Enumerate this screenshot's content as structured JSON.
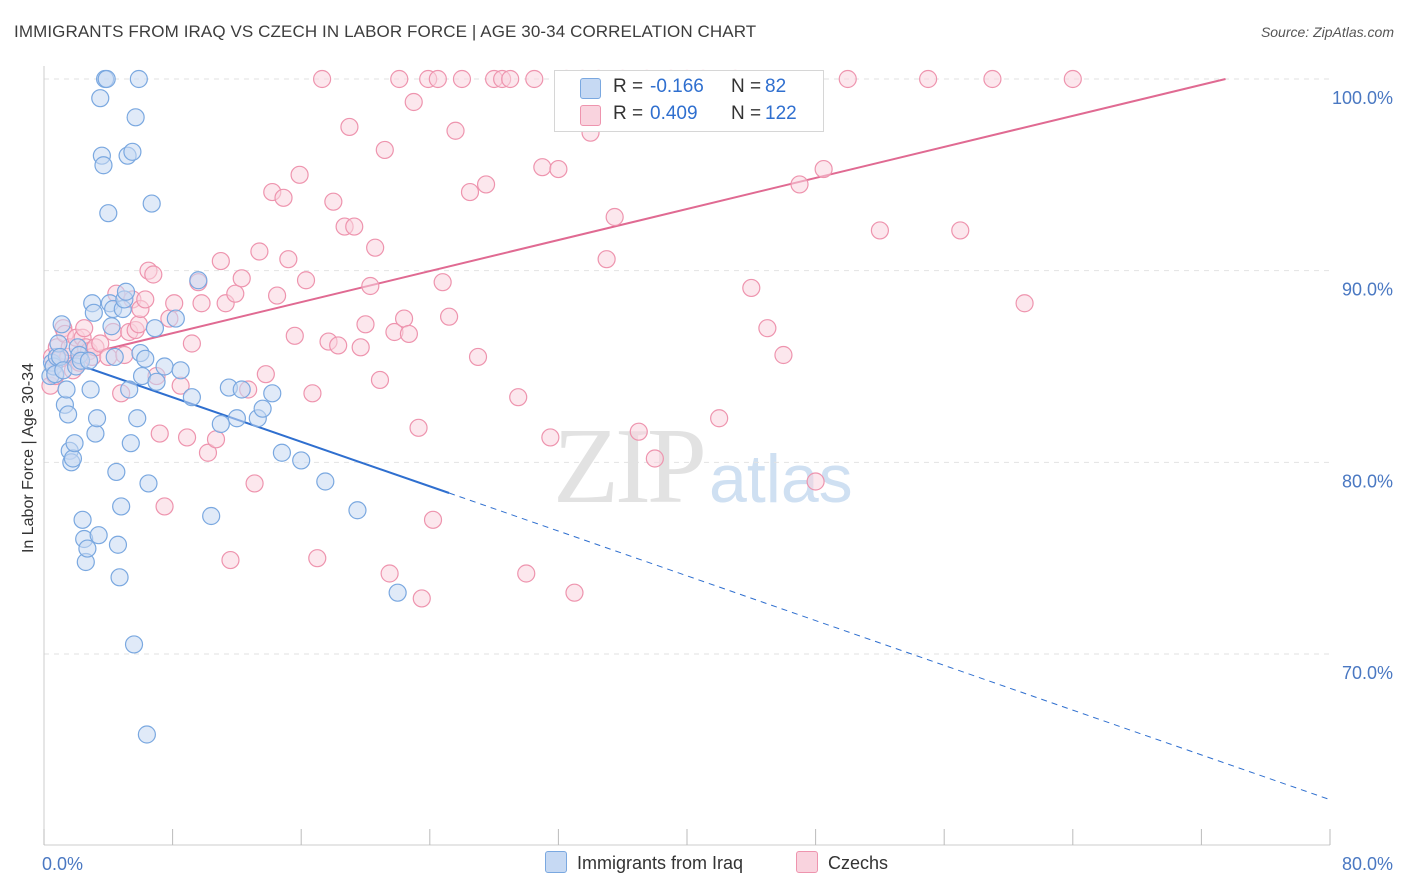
{
  "title": "IMMIGRANTS FROM IRAQ VS CZECH IN LABOR FORCE | AGE 30-34 CORRELATION CHART",
  "source": "Source: ZipAtlas.com",
  "watermark": {
    "zip": "ZIP",
    "atlas": "atlas"
  },
  "colors": {
    "blue": "#7aa8e0",
    "blue_fill": "#c6d9f3",
    "blue_line": "#2f6fcf",
    "pink": "#ee94ae",
    "pink_fill": "#f9d3de",
    "pink_line": "#e06a92",
    "axis_text": "#4a78c2",
    "grid": "#e2e2e2"
  },
  "stats": {
    "r_label": "R =",
    "n_label": "N =",
    "blue": {
      "r": "-0.166",
      "n": "82"
    },
    "pink": {
      "r": "0.409",
      "n": "122"
    }
  },
  "legend": {
    "blue_label": "Immigrants from Iraq",
    "pink_label": "Czechs"
  },
  "chart_data": {
    "type": "scatter",
    "title": "IMMIGRANTS FROM IRAQ VS CZECH IN LABOR FORCE | AGE 30-34 CORRELATION CHART",
    "xlabel": "",
    "ylabel": "In Labor Force | Age 30-34",
    "xlim": [
      0,
      80
    ],
    "ylim": [
      62,
      100
    ],
    "x_ticks": [
      0,
      8,
      16,
      24,
      32,
      40,
      48,
      56,
      64,
      72,
      80
    ],
    "x_tick_labels": {
      "min": "0.0%",
      "max": "80.0%"
    },
    "y_ticks": [
      70,
      80,
      90,
      100
    ],
    "y_tick_labels": [
      "70.0%",
      "80.0%",
      "90.0%",
      "100.0%"
    ],
    "series": [
      {
        "name": "Immigrants from Iraq",
        "color": "#7aa8e0",
        "r": -0.166,
        "n": 82,
        "trend": {
          "x0": 0.4,
          "y0": 85.6,
          "x1": 25.2,
          "y1": 78.4,
          "x_end": 80,
          "y_end": 62.4
        },
        "points": [
          [
            0.4,
            84.5
          ],
          [
            0.5,
            85.2
          ],
          [
            0.6,
            85.0
          ],
          [
            0.7,
            84.6
          ],
          [
            0.8,
            85.5
          ],
          [
            0.9,
            86.2
          ],
          [
            1.0,
            85.5
          ],
          [
            1.1,
            87.2
          ],
          [
            1.2,
            84.8
          ],
          [
            1.3,
            83.0
          ],
          [
            1.4,
            83.8
          ],
          [
            1.5,
            82.5
          ],
          [
            1.6,
            80.6
          ],
          [
            1.7,
            80.0
          ],
          [
            1.8,
            80.2
          ],
          [
            1.9,
            81.0
          ],
          [
            2.0,
            85.0
          ],
          [
            2.1,
            86.0
          ],
          [
            2.2,
            85.6
          ],
          [
            2.3,
            85.3
          ],
          [
            2.4,
            77.0
          ],
          [
            2.5,
            76.0
          ],
          [
            2.6,
            74.8
          ],
          [
            2.7,
            75.5
          ],
          [
            2.8,
            85.3
          ],
          [
            2.9,
            83.8
          ],
          [
            3.0,
            88.3
          ],
          [
            3.1,
            87.8
          ],
          [
            3.2,
            81.5
          ],
          [
            3.3,
            82.3
          ],
          [
            3.4,
            76.2
          ],
          [
            3.5,
            99.0
          ],
          [
            3.6,
            96.0
          ],
          [
            3.7,
            95.5
          ],
          [
            3.8,
            100.0
          ],
          [
            3.9,
            100.0
          ],
          [
            4.0,
            93.0
          ],
          [
            4.1,
            88.3
          ],
          [
            4.2,
            87.1
          ],
          [
            4.3,
            88.0
          ],
          [
            4.4,
            85.5
          ],
          [
            4.5,
            79.5
          ],
          [
            4.6,
            75.7
          ],
          [
            4.7,
            74.0
          ],
          [
            4.8,
            77.7
          ],
          [
            4.9,
            88.0
          ],
          [
            5.0,
            88.5
          ],
          [
            5.1,
            88.9
          ],
          [
            5.2,
            96.0
          ],
          [
            5.3,
            83.8
          ],
          [
            5.4,
            81.0
          ],
          [
            5.5,
            96.2
          ],
          [
            5.6,
            70.5
          ],
          [
            5.7,
            98.0
          ],
          [
            5.8,
            82.3
          ],
          [
            5.9,
            100.0
          ],
          [
            6.0,
            85.7
          ],
          [
            6.1,
            84.5
          ],
          [
            6.3,
            85.4
          ],
          [
            6.4,
            65.8
          ],
          [
            6.5,
            78.9
          ],
          [
            6.7,
            93.5
          ],
          [
            6.9,
            87.0
          ],
          [
            7.0,
            84.2
          ],
          [
            7.5,
            85.0
          ],
          [
            8.2,
            87.5
          ],
          [
            8.5,
            84.8
          ],
          [
            9.2,
            83.4
          ],
          [
            9.6,
            89.5
          ],
          [
            10.4,
            77.2
          ],
          [
            11.0,
            82.0
          ],
          [
            11.5,
            83.9
          ],
          [
            12.0,
            82.3
          ],
          [
            12.3,
            83.8
          ],
          [
            13.3,
            82.3
          ],
          [
            13.6,
            82.8
          ],
          [
            14.2,
            83.6
          ],
          [
            14.8,
            80.5
          ],
          [
            16.0,
            80.1
          ],
          [
            17.5,
            79.0
          ],
          [
            19.5,
            77.5
          ],
          [
            22.0,
            73.2
          ]
        ]
      },
      {
        "name": "Czechs",
        "color": "#ee94ae",
        "r": 0.409,
        "n": 122,
        "trend": {
          "x0": 0.4,
          "y0": 85.2,
          "x1": 73.5,
          "y1": 100.0
        },
        "points": [
          [
            0.4,
            84.0
          ],
          [
            0.5,
            85.5
          ],
          [
            0.6,
            85.0
          ],
          [
            0.7,
            84.5
          ],
          [
            0.8,
            86.0
          ],
          [
            1.0,
            85.4
          ],
          [
            1.2,
            87.0
          ],
          [
            1.3,
            86.7
          ],
          [
            1.5,
            85.5
          ],
          [
            1.6,
            86.0
          ],
          [
            1.8,
            84.8
          ],
          [
            2.0,
            86.5
          ],
          [
            2.2,
            85.2
          ],
          [
            2.4,
            86.5
          ],
          [
            2.5,
            87.0
          ],
          [
            2.6,
            86.0
          ],
          [
            2.8,
            85.8
          ],
          [
            3.0,
            85.5
          ],
          [
            3.2,
            86.0
          ],
          [
            3.5,
            86.2
          ],
          [
            4.0,
            85.5
          ],
          [
            4.3,
            86.8
          ],
          [
            4.5,
            88.8
          ],
          [
            4.8,
            83.6
          ],
          [
            5.0,
            85.6
          ],
          [
            5.3,
            86.8
          ],
          [
            5.5,
            88.5
          ],
          [
            5.7,
            86.9
          ],
          [
            5.9,
            87.2
          ],
          [
            6.0,
            88.0
          ],
          [
            6.3,
            88.5
          ],
          [
            6.5,
            90.0
          ],
          [
            6.8,
            89.8
          ],
          [
            7.0,
            84.5
          ],
          [
            7.2,
            81.5
          ],
          [
            7.5,
            77.7
          ],
          [
            7.8,
            87.5
          ],
          [
            8.1,
            88.3
          ],
          [
            8.5,
            84.0
          ],
          [
            8.9,
            81.3
          ],
          [
            9.2,
            86.2
          ],
          [
            9.6,
            89.4
          ],
          [
            9.8,
            88.3
          ],
          [
            10.2,
            80.5
          ],
          [
            10.7,
            81.2
          ],
          [
            11.0,
            90.5
          ],
          [
            11.3,
            88.3
          ],
          [
            11.6,
            74.9
          ],
          [
            11.9,
            88.8
          ],
          [
            12.3,
            89.6
          ],
          [
            12.7,
            83.8
          ],
          [
            13.1,
            78.9
          ],
          [
            13.4,
            91.0
          ],
          [
            13.8,
            84.6
          ],
          [
            14.2,
            94.1
          ],
          [
            14.5,
            88.7
          ],
          [
            14.9,
            93.8
          ],
          [
            15.2,
            90.6
          ],
          [
            15.6,
            86.6
          ],
          [
            15.9,
            95.0
          ],
          [
            16.3,
            89.5
          ],
          [
            16.7,
            83.6
          ],
          [
            17.0,
            75.0
          ],
          [
            17.3,
            100.0
          ],
          [
            17.7,
            86.3
          ],
          [
            18.0,
            93.6
          ],
          [
            18.3,
            86.1
          ],
          [
            18.7,
            92.3
          ],
          [
            19.0,
            97.5
          ],
          [
            19.3,
            92.3
          ],
          [
            19.7,
            86.0
          ],
          [
            20.0,
            87.2
          ],
          [
            20.3,
            89.2
          ],
          [
            20.6,
            91.2
          ],
          [
            20.9,
            84.3
          ],
          [
            21.2,
            96.3
          ],
          [
            21.5,
            74.2
          ],
          [
            21.8,
            86.8
          ],
          [
            22.1,
            100.0
          ],
          [
            22.4,
            87.5
          ],
          [
            22.7,
            86.7
          ],
          [
            23.0,
            98.8
          ],
          [
            23.3,
            81.8
          ],
          [
            23.5,
            72.9
          ],
          [
            23.9,
            100.0
          ],
          [
            24.2,
            77.0
          ],
          [
            24.5,
            100.0
          ],
          [
            24.8,
            89.4
          ],
          [
            25.2,
            87.6
          ],
          [
            25.6,
            97.3
          ],
          [
            26.0,
            100.0
          ],
          [
            26.5,
            94.1
          ],
          [
            27.0,
            85.5
          ],
          [
            27.5,
            94.5
          ],
          [
            28.0,
            100.0
          ],
          [
            28.5,
            100.0
          ],
          [
            29.0,
            100.0
          ],
          [
            29.5,
            83.4
          ],
          [
            30.0,
            74.2
          ],
          [
            30.5,
            100.0
          ],
          [
            31.0,
            95.4
          ],
          [
            31.5,
            81.3
          ],
          [
            32.0,
            95.3
          ],
          [
            32.5,
            100.0
          ],
          [
            33.0,
            73.2
          ],
          [
            33.5,
            100.0
          ],
          [
            34.0,
            97.2
          ],
          [
            34.5,
            100.0
          ],
          [
            35.0,
            90.6
          ],
          [
            35.5,
            92.8
          ],
          [
            36.0,
            100.0
          ],
          [
            37.0,
            81.6
          ],
          [
            37.5,
            100.0
          ],
          [
            38.0,
            80.2
          ],
          [
            39.0,
            100.0
          ],
          [
            40.0,
            100.0
          ],
          [
            41.0,
            100.0
          ],
          [
            42.0,
            82.3
          ],
          [
            43.0,
            100.0
          ],
          [
            44.0,
            89.1
          ],
          [
            45.0,
            87.0
          ],
          [
            46.0,
            85.6
          ],
          [
            47.0,
            94.5
          ],
          [
            48.0,
            79.0
          ],
          [
            48.5,
            95.3
          ],
          [
            50.0,
            100.0
          ],
          [
            52.0,
            92.1
          ],
          [
            55.0,
            100.0
          ],
          [
            57.0,
            92.1
          ],
          [
            59.0,
            100.0
          ],
          [
            61.0,
            88.3
          ],
          [
            64.0,
            100.0
          ]
        ]
      }
    ]
  }
}
